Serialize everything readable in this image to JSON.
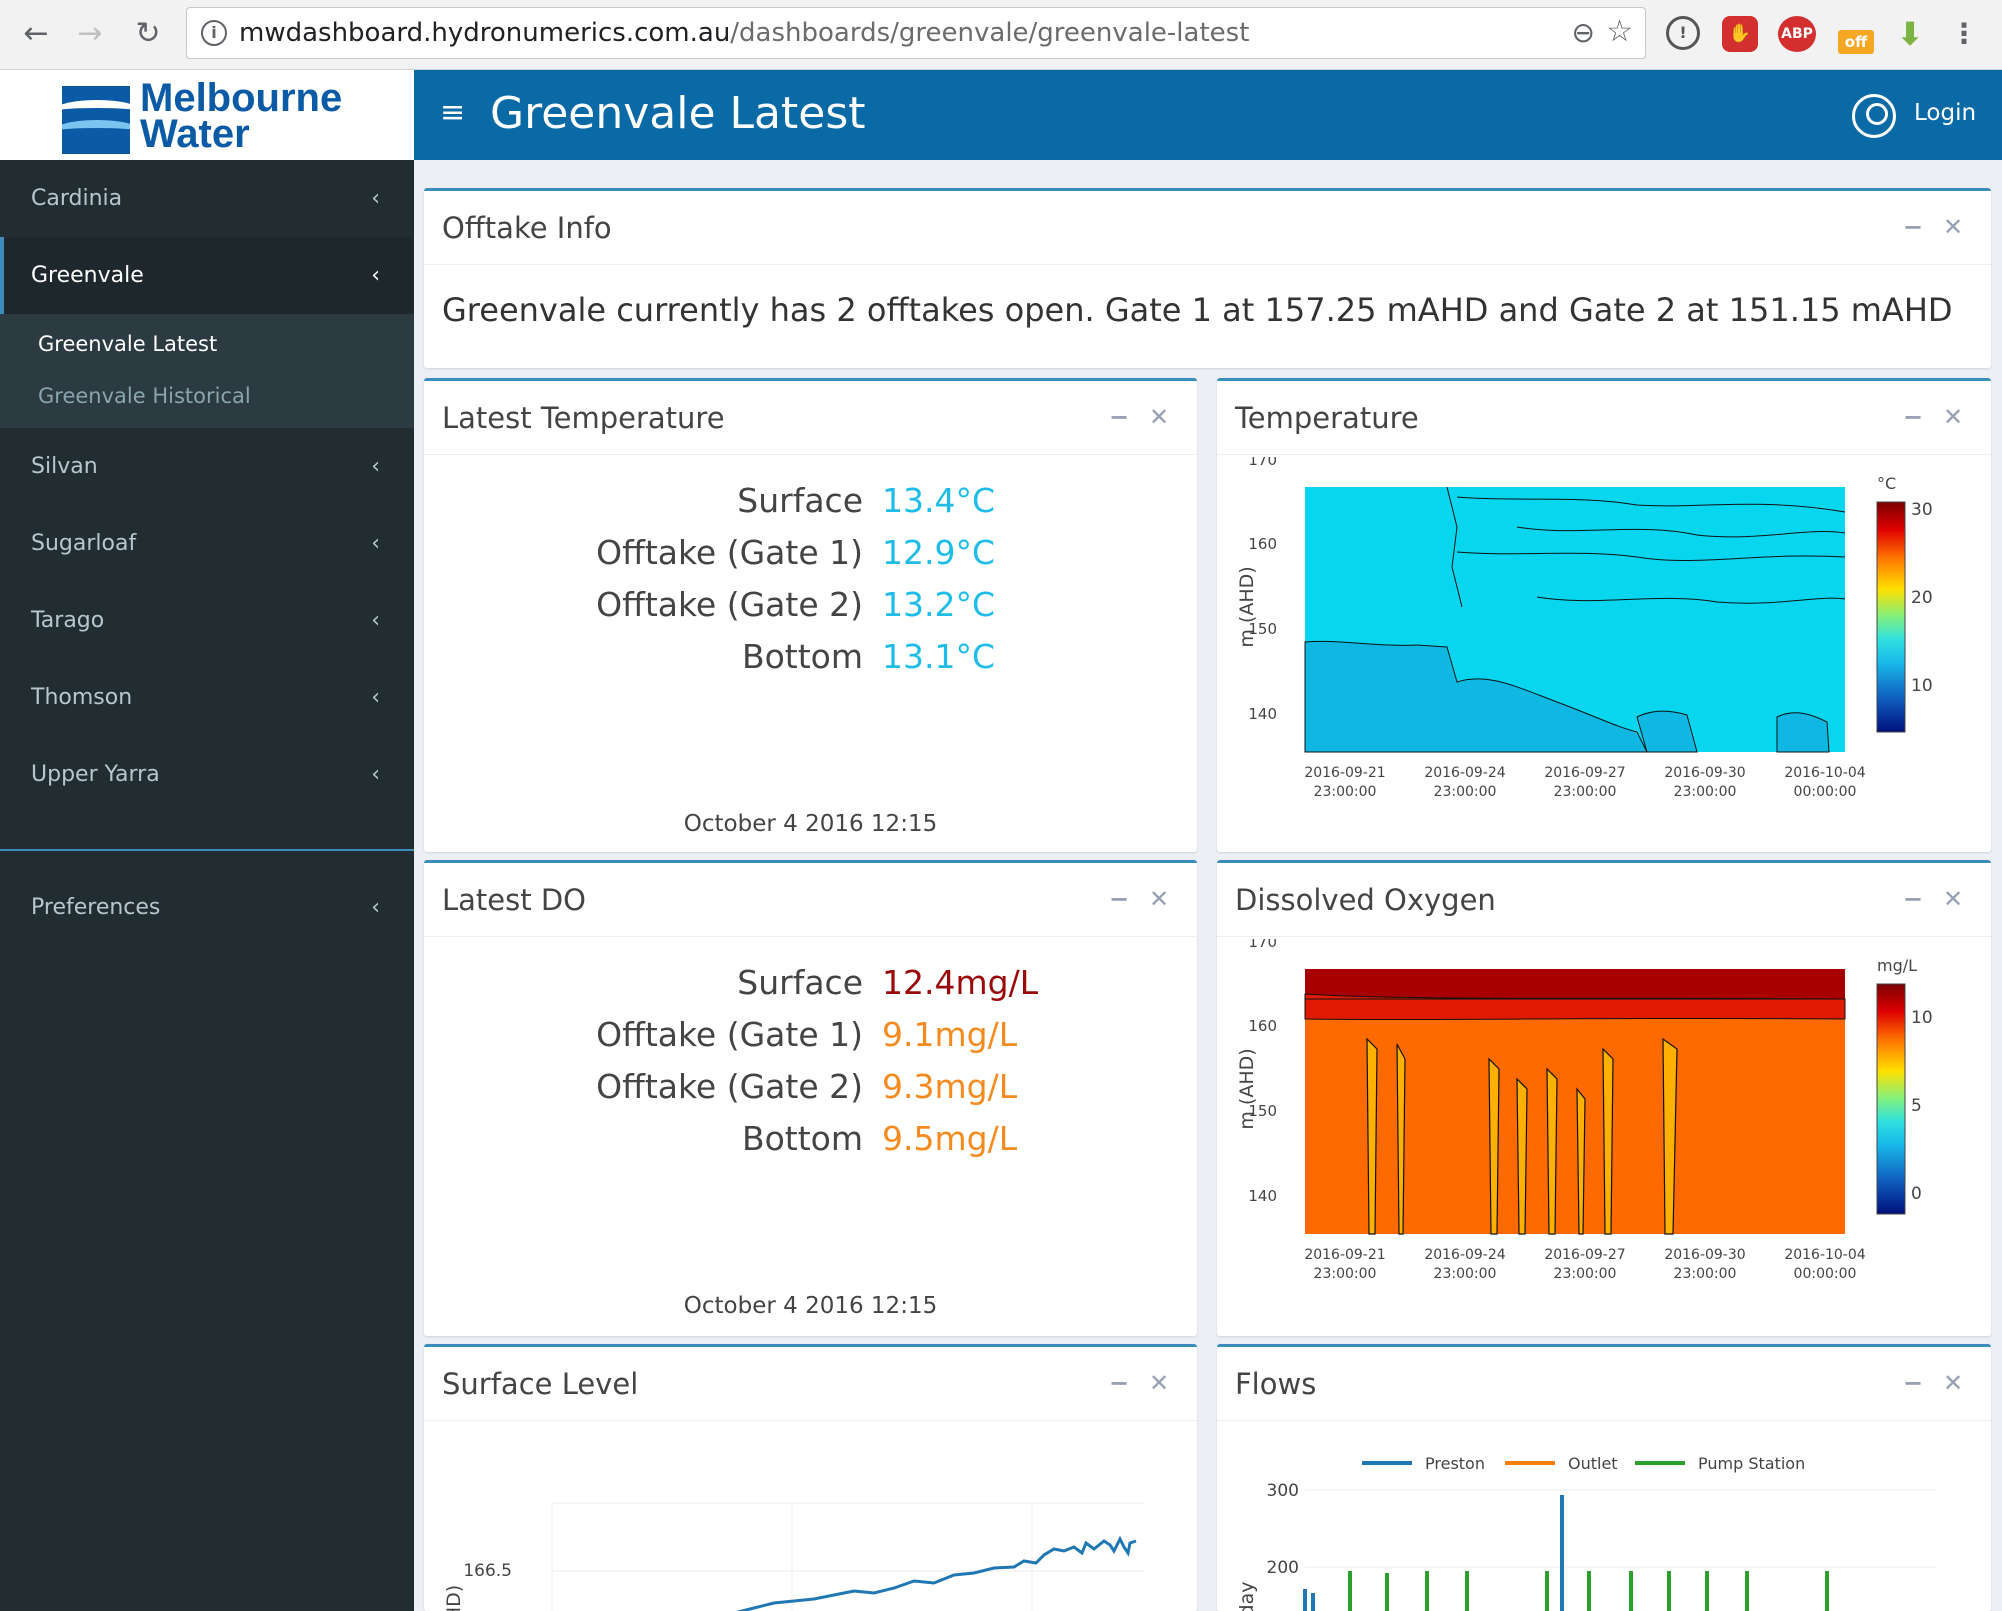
{
  "browser": {
    "url_host": "mwdashboard.hydronumerics.com.au",
    "url_path": "/dashboards/greenvale/greenvale-latest",
    "ext_abp": "ABP",
    "ext_off": "off"
  },
  "logo": {
    "line1": "Melbourne",
    "line2": "Water"
  },
  "sidebar": {
    "items": [
      {
        "label": "Cardinia"
      },
      {
        "label": "Greenvale"
      },
      {
        "label": "Silvan"
      },
      {
        "label": "Sugarloaf"
      },
      {
        "label": "Tarago"
      },
      {
        "label": "Thomson"
      },
      {
        "label": "Upper Yarra"
      }
    ],
    "submenu": [
      {
        "label": "Greenvale Latest"
      },
      {
        "label": "Greenvale Historical"
      }
    ],
    "preferences": "Preferences"
  },
  "header": {
    "title": "Greenvale Latest",
    "login": "Login"
  },
  "offtake": {
    "title": "Offtake Info",
    "text": "Greenvale currently has 2 offtakes open. Gate 1 at 157.25 mAHD and Gate 2 at 151.15 mAHD"
  },
  "latest_temp": {
    "title": "Latest Temperature",
    "rows": [
      {
        "label": "Surface",
        "value": "13.4°C",
        "color": "#1ebde8"
      },
      {
        "label": "Offtake (Gate 1)",
        "value": "12.9°C",
        "color": "#1ebde8"
      },
      {
        "label": "Offtake (Gate 2)",
        "value": "13.2°C",
        "color": "#1ebde8"
      },
      {
        "label": "Bottom",
        "value": "13.1°C",
        "color": "#1ebde8"
      }
    ],
    "timestamp": "October 4 2016 12:15"
  },
  "latest_do": {
    "title": "Latest DO",
    "rows": [
      {
        "label": "Surface",
        "value": "12.4mg/L",
        "color": "#9b0a0a"
      },
      {
        "label": "Offtake (Gate 1)",
        "value": "9.1mg/L",
        "color": "#f58a1f"
      },
      {
        "label": "Offtake (Gate 2)",
        "value": "9.3mg/L",
        "color": "#f58a1f"
      },
      {
        "label": "Bottom",
        "value": "9.5mg/L",
        "color": "#f58a1f"
      }
    ],
    "timestamp": "October 4 2016 12:15"
  },
  "temperature_chart": {
    "title": "Temperature",
    "ylabel": "m (AHD)",
    "unit": "°C",
    "yticks": [
      "170",
      "160",
      "150",
      "140"
    ],
    "xticks": [
      [
        "2016-09-21",
        "23:00:00"
      ],
      [
        "2016-09-24",
        "23:00:00"
      ],
      [
        "2016-09-27",
        "23:00:00"
      ],
      [
        "2016-09-30",
        "23:00:00"
      ],
      [
        "2016-10-04",
        "00:00:00"
      ]
    ],
    "scale_ticks": [
      "30",
      "20",
      "10"
    ]
  },
  "do_chart": {
    "title": "Dissolved Oxygen",
    "ylabel": "m (AHD)",
    "unit": "mg/L",
    "yticks": [
      "170",
      "160",
      "150",
      "140"
    ],
    "xticks": [
      [
        "2016-09-21",
        "23:00:00"
      ],
      [
        "2016-09-24",
        "23:00:00"
      ],
      [
        "2016-09-27",
        "23:00:00"
      ],
      [
        "2016-09-30",
        "23:00:00"
      ],
      [
        "2016-10-04",
        "00:00:00"
      ]
    ],
    "scale_ticks": [
      "10",
      "5",
      "0"
    ]
  },
  "surface_level": {
    "title": "Surface Level",
    "ytick": "166.5",
    "ylabel_fragment": "HD)"
  },
  "flows": {
    "title": "Flows",
    "legend": [
      {
        "name": "Preston",
        "color": "#1f77b4"
      },
      {
        "name": "Outlet",
        "color": "#ff7f0e"
      },
      {
        "name": "Pump Station",
        "color": "#2ca02c"
      }
    ],
    "yticks": [
      "300",
      "200"
    ],
    "ylabel_fragment": "day"
  }
}
